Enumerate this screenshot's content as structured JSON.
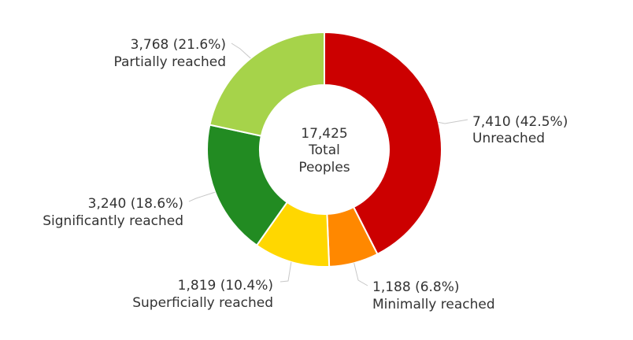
{
  "chart_data": {
    "type": "pie",
    "variant": "donut",
    "title": "",
    "center": {
      "total": "17,425",
      "line1": "Total",
      "line2": "Peoples"
    },
    "slices": [
      {
        "key": "unreached",
        "label": "Unreached",
        "value": 7410,
        "value_text": "7,410 (42.5%)",
        "color": "#cc0000"
      },
      {
        "key": "minimally",
        "label": "Minimally reached",
        "value": 1188,
        "value_text": "1,188 (6.8%)",
        "color": "#ff8800"
      },
      {
        "key": "superficially",
        "label": "Superficially reached",
        "value": 1819,
        "value_text": "1,819 (10.4%)",
        "color": "#ffd700"
      },
      {
        "key": "significantly",
        "label": "Significantly reached",
        "value": 3240,
        "value_text": "3,240 (18.6%)",
        "color": "#228b22"
      },
      {
        "key": "partially",
        "label": "Partially reached",
        "value": 3768,
        "value_text": "3,768 (21.6%)",
        "color": "#a6d34a"
      }
    ]
  }
}
